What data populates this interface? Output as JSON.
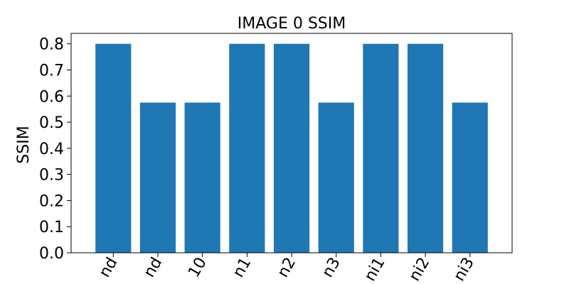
{
  "colors": {
    "bar": "#1f77b4",
    "axis": "#000000",
    "background": "#ffffff"
  },
  "chart_data": {
    "type": "bar",
    "title": "IMAGE 0 SSIM",
    "xlabel": "",
    "ylabel": "SSIM",
    "categories": [
      "nd",
      "nd",
      "10",
      "n1",
      "n2",
      "n3",
      "ni1",
      "ni2",
      "ni3"
    ],
    "values": [
      0.8,
      0.575,
      0.575,
      0.8,
      0.8,
      0.575,
      0.8,
      0.8,
      0.575
    ],
    "ylim": [
      0,
      0.84
    ],
    "yticks": [
      "0.0",
      "0.1",
      "0.2",
      "0.3",
      "0.4",
      "0.5",
      "0.6",
      "0.7",
      "0.8"
    ],
    "grid": false,
    "legend": "none"
  }
}
